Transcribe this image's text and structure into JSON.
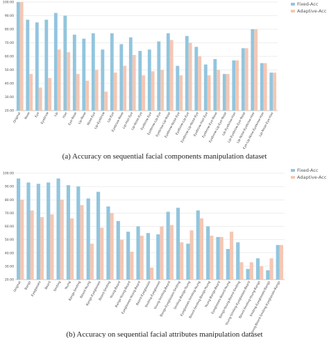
{
  "legend_position": "top-right",
  "colors": {
    "fixed": "#92C5DE",
    "adaptive": "#F4C7B4",
    "grid": "#dddddd",
    "axis": "#999999"
  },
  "chart_data": [
    {
      "type": "bar",
      "caption": "(a) Accuracy on sequential facial components manipulation dataset",
      "ylim": [
        20,
        100
      ],
      "yticks": [
        "20.00",
        "30.00",
        "40.00",
        "50.00",
        "60.00",
        "70.00",
        "80.00",
        "90.00",
        "100.00"
      ],
      "grid": true,
      "categories": [
        "Original",
        "Nose",
        "Eye",
        "Eyebrow",
        "Lip",
        "Hair",
        "Eye-Nose",
        "Lip-Nose",
        "Nose-Eye",
        "Lip-Eyebrow",
        "Lip-Eye",
        "Eyebrow-Nose",
        "Lip-Hair-Eye",
        "Lip-Nose-Eye",
        "Eyebrow-Eye",
        "Eyebrow-Lip-Eye",
        "Eyebrow-Lip-Nose",
        "Eyebrow-Nose-Eye",
        "Eyebrow-Lip-Eye",
        "Eyebrow-Lip-Nose-Eye",
        "Eyebrow-Hair-Eye",
        "Eyebrow-Eye-Nose",
        "Eyebrow-Lip-Eye-Nose",
        "Lip-Eyebrow-Hair",
        "Lip-Eyebrow-Eye-Nose",
        "Lip-Nose-Eyebrow-Hair",
        "Eye-Lip-Nose-Eyebrow-Hair",
        "Lip-Nose-Eye-Hair"
      ],
      "series": [
        {
          "name": "Fixed-Acc",
          "values": [
            100,
            87,
            85,
            87,
            92,
            90,
            76,
            73,
            77,
            65,
            77,
            69,
            74,
            64,
            65,
            71,
            77,
            53,
            75,
            67,
            54,
            58,
            47,
            57,
            66,
            80,
            55,
            48
          ]
        },
        {
          "name": "Adaptive-Acc",
          "values": [
            100,
            47,
            37,
            44,
            65,
            63,
            47,
            42,
            50,
            34,
            48,
            53,
            61,
            46,
            49,
            50,
            72,
            46,
            70,
            60,
            46,
            50,
            47,
            57,
            66,
            80,
            55,
            48
          ]
        }
      ]
    },
    {
      "type": "bar",
      "caption": "(b) Accuracy on sequential facial attributes manipulation dataset",
      "ylim": [
        20,
        100
      ],
      "yticks": [
        "20.00",
        "30.00",
        "40.00",
        "50.00",
        "60.00",
        "70.00",
        "80.00",
        "90.00",
        "100.00"
      ],
      "grid": true,
      "categories": [
        "Original",
        "Bangs",
        "Eyeglasses",
        "Beard",
        "Smiling",
        "Young",
        "Bangs-Smiling",
        "Beard-Young",
        "Bangs-Eyeglasses",
        "Beard-Smiling",
        "Young-Beard",
        "Bangs-Young-Beard",
        "Eyeglasses-Young-Beard",
        "Beard-Eyeglasses",
        "Smiling-Eyeglasses",
        "Young-Smiling-Beard",
        "Bangs-Eyeglasses-Smiling",
        "Smiling-Bangs-Young",
        "Eyeglasses-Smiling-Young",
        "Beard-Smiling-Bangs-Young",
        "Young-Bangs-Beard",
        "Eyeglasses-Beard-Young",
        "Bangs-Young-Beard-Smiling",
        "Young-Smiling-Eyeglasses-Beard",
        "Beard-Smiling-Young-Bangs",
        "Smiling-Eyeglasses-Bangs",
        "Young-Beard-Smiling-Eyeglasses-Bangs"
      ],
      "series": [
        {
          "name": "Fixed-Acc",
          "values": [
            96,
            93,
            92,
            93,
            96,
            91,
            90,
            81,
            86,
            75,
            64,
            56,
            60,
            55,
            54,
            71,
            74,
            47,
            72,
            60,
            52,
            43,
            48,
            28,
            36,
            27,
            46
          ]
        },
        {
          "name": "Adaptive-Acc",
          "values": [
            80,
            72,
            67,
            69,
            80,
            66,
            76,
            47,
            59,
            70,
            50,
            41,
            53,
            29,
            60,
            61,
            48,
            57,
            66,
            53,
            52,
            56,
            33,
            33,
            30,
            36,
            46
          ]
        }
      ]
    }
  ]
}
